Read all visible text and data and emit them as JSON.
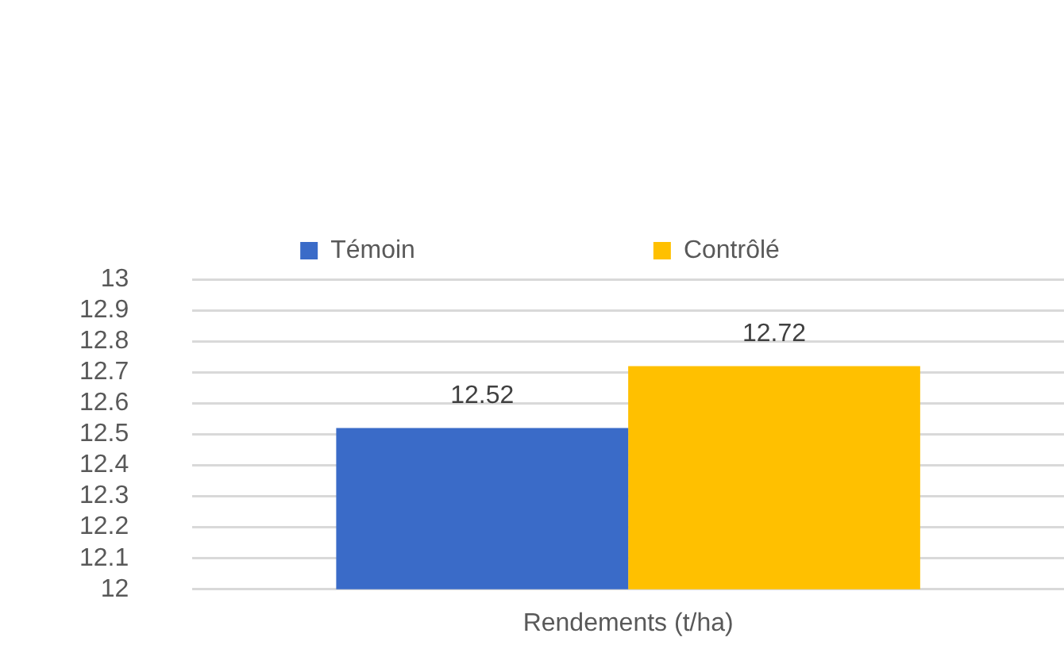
{
  "chart_data": {
    "type": "bar",
    "categories": [
      "Rendements (t/ha)"
    ],
    "series": [
      {
        "name": "Témoin",
        "color": "#3a6bc8",
        "values": [
          12.52
        ]
      },
      {
        "name": "Contrôlé",
        "color": "#ffc000",
        "values": [
          12.72
        ]
      }
    ],
    "ylim": [
      12,
      13
    ],
    "yticks": [
      12,
      12.1,
      12.2,
      12.3,
      12.4,
      12.5,
      12.6,
      12.7,
      12.8,
      12.9,
      13
    ],
    "grid": "y",
    "legend": "top",
    "data_labels": true
  }
}
